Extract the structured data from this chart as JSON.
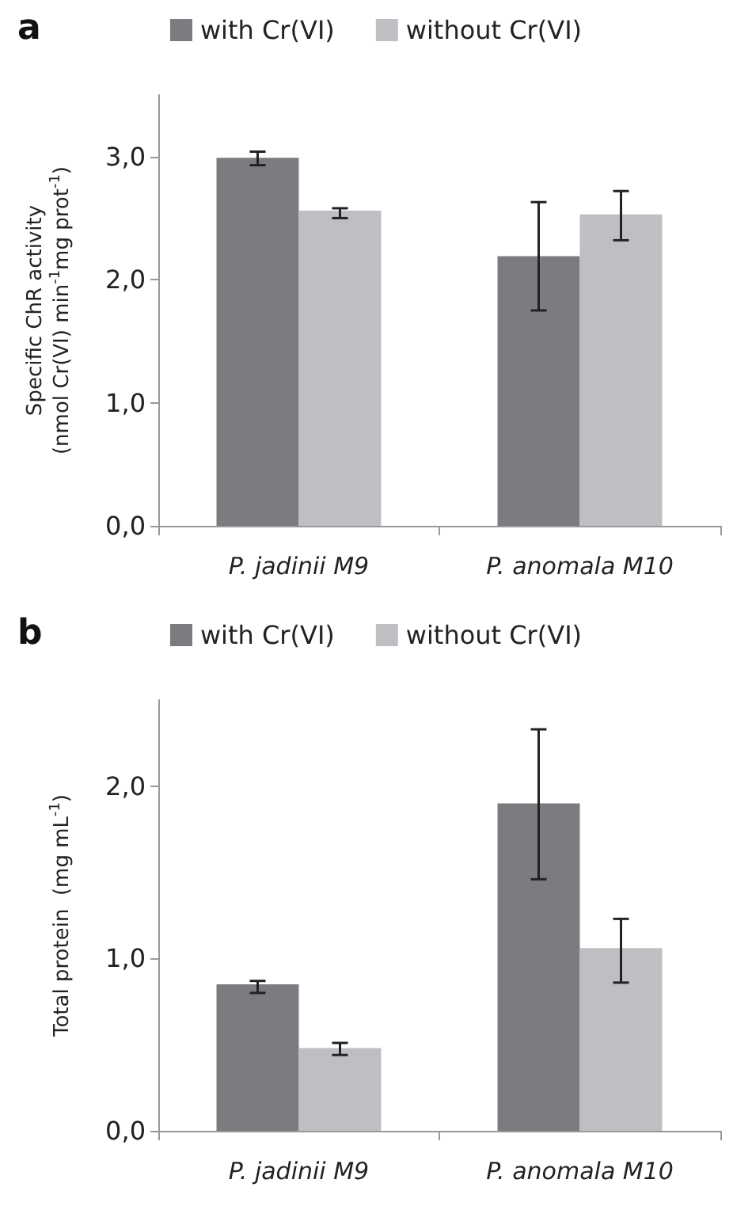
{
  "chart_data": [
    {
      "type": "bar",
      "title": "a",
      "ylabel": "Specific ChR activity\n(nmol Cr(VI) min$^{-1}$mg prot$^{-1}$)",
      "categories": [
        "P. jadinii M9",
        "P. anomala M10"
      ],
      "series": [
        {
          "name": "with Cr(VI)",
          "color": "#7b7c80",
          "values": [
            2.99,
            2.19
          ],
          "errors": [
            [
              2.93,
              3.04
            ],
            [
              1.75,
              2.63
            ]
          ]
        },
        {
          "name": "without Cr(VI)",
          "color": "#bebfc3",
          "values": [
            2.56,
            2.53
          ],
          "errors": [
            [
              2.5,
              2.58
            ],
            [
              2.32,
              2.72
            ]
          ]
        }
      ],
      "ylim": [
        0,
        3.5
      ],
      "yticks": [
        {
          "value": 0,
          "label": "0,0"
        },
        {
          "value": 1,
          "label": "1,0"
        },
        {
          "value": 2,
          "label": "2,0"
        },
        {
          "value": 3,
          "label": "3,0"
        }
      ],
      "grid": false,
      "legend": "top"
    },
    {
      "type": "bar",
      "title": "b",
      "ylabel": "Total protein  (mg mL$^{-1}$)",
      "categories": [
        "P. jadinii M9",
        "P. anomala M10"
      ],
      "series": [
        {
          "name": "with Cr(VI)",
          "color": "#7b7c80",
          "values": [
            0.85,
            1.9
          ],
          "errors": [
            [
              0.8,
              0.87
            ],
            [
              1.46,
              2.33
            ]
          ]
        },
        {
          "name": "without Cr(VI)",
          "color": "#bebfc3",
          "values": [
            0.48,
            1.06
          ],
          "errors": [
            [
              0.44,
              0.51
            ],
            [
              0.86,
              1.23
            ]
          ]
        }
      ],
      "ylim": [
        0,
        2.5
      ],
      "yticks": [
        {
          "value": 0,
          "label": "0,0"
        },
        {
          "value": 1,
          "label": "1,0"
        },
        {
          "value": 2,
          "label": "2,0"
        }
      ],
      "grid": false,
      "legend": "top"
    }
  ]
}
